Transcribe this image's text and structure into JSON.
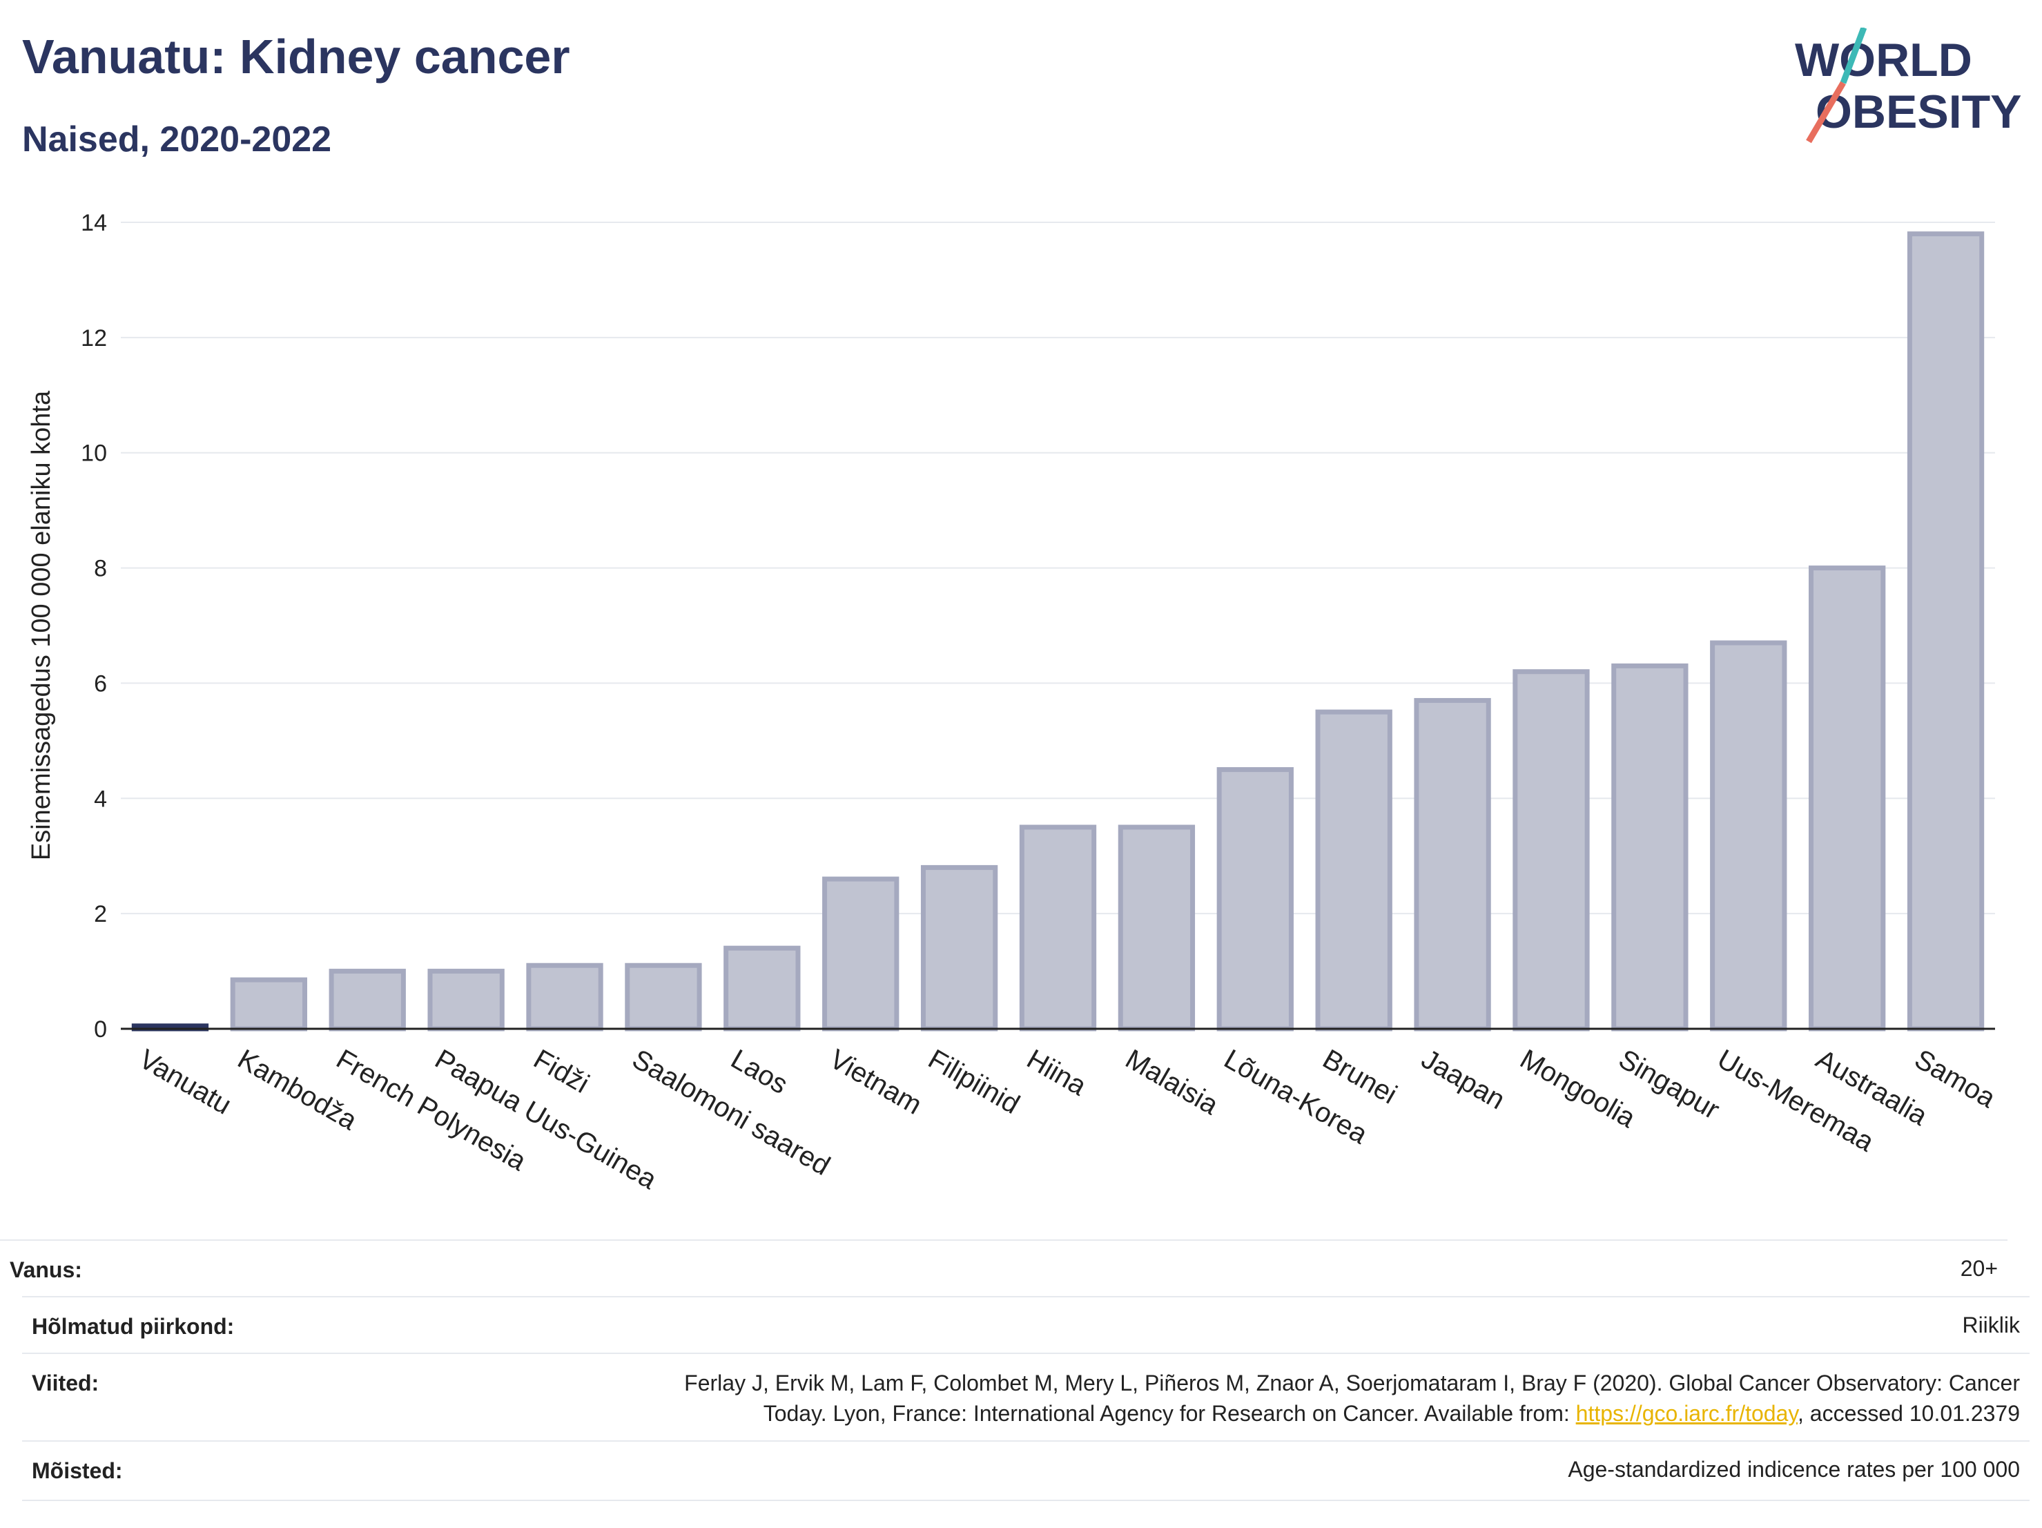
{
  "header": {
    "title": "Vanuatu: Kidney cancer",
    "subtitle": "Naised, 2020-2022",
    "logo_line1": "WORLD",
    "logo_line2": "OBESITY"
  },
  "colors": {
    "bar_fill": "#c0c3d1",
    "bar_stroke": "#a5a9bf",
    "highlight": "#2b3560",
    "logo_navy": "#2b3560",
    "logo_teal": "#3db9b6",
    "logo_red": "#e86e5e"
  },
  "chart_data": {
    "type": "bar",
    "title": "Vanuatu: Kidney cancer",
    "subtitle": "Naised, 2020-2022",
    "ylabel": "Esinemissagedus 100 000 elaniku kohta",
    "xlabel": "",
    "ylim": [
      0,
      14
    ],
    "yticks": [
      0,
      2,
      4,
      6,
      8,
      10,
      12,
      14
    ],
    "grid": true,
    "highlight_category": "Vanuatu",
    "categories": [
      "Vanuatu",
      "Kambodža",
      "French Polynesia",
      "Paapua Uus-Guinea",
      "Fidži",
      "Saalomoni saared",
      "Laos",
      "Vietnam",
      "Filipiinid",
      "Hiina",
      "Malaisia",
      "Lõuna-Korea",
      "Brunei",
      "Jaapan",
      "Mongoolia",
      "Singapur",
      "Uus-Meremaa",
      "Austraalia",
      "Samoa"
    ],
    "values": [
      0.05,
      0.85,
      1.0,
      1.0,
      1.1,
      1.1,
      1.4,
      2.6,
      2.8,
      3.5,
      3.5,
      4.5,
      5.5,
      5.7,
      6.2,
      6.3,
      6.7,
      8.0,
      13.8
    ]
  },
  "meta": [
    {
      "label": "Vanus:",
      "value": "20+"
    },
    {
      "label": "Hõlmatud piirkond:",
      "value": "Riiklik"
    },
    {
      "label": "Viited:",
      "value_line1": "Ferlay J, Ervik M, Lam F, Colombet M, Mery L, Piñeros M, Znaor A, Soerjomataram I, Bray F (2020). Global Cancer Observatory: Cancer",
      "value_line2_pre": "Today. Lyon, France: International Agency for Research on Cancer. Available from: ",
      "link": "https://gco.iarc.fr/today",
      "value_line2_post": ", accessed 10.01.2379"
    },
    {
      "label": "Mõisted:",
      "value": "Age-standardized indicence rates per 100 000"
    }
  ]
}
